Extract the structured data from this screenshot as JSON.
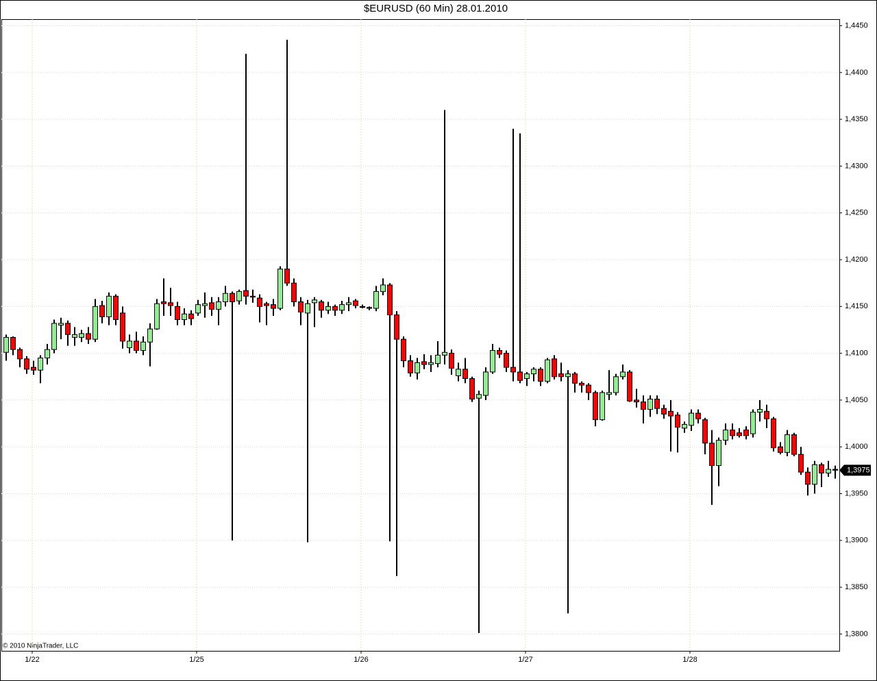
{
  "chart_data": {
    "type": "candlestick",
    "title": "$EURUSD (60 Min)  28.01.2010",
    "copyright": "© 2010 NinjaTrader, LLC",
    "up_color": "#90ee90",
    "down_color": "#ff0000",
    "grid": true,
    "open": [
      1.4101,
      1.4117,
      1.4104,
      1.4094,
      1.4085,
      1.4082,
      1.4095,
      1.4104,
      1.413,
      1.4132,
      1.4117,
      1.4117,
      1.4121,
      1.4115,
      1.4151,
      1.4139,
      1.4161,
      1.4143,
      1.4106,
      1.4113,
      1.4103,
      1.4112,
      1.4126,
      1.4155,
      1.4154,
      1.415,
      1.4136,
      1.4142,
      1.4143,
      1.4151,
      1.4154,
      1.4147,
      1.4155,
      1.4164,
      1.4156,
      1.4167,
      1.4161,
      1.4159,
      1.4153,
      1.4152,
      1.4148,
      1.419,
      1.4175,
      1.4155,
      1.4143,
      1.4154,
      1.4155,
      1.4146,
      1.415,
      1.4146,
      1.4152,
      1.4156,
      1.415,
      1.4149,
      1.4148,
      1.4166,
      1.4173,
      1.4141,
      1.4115,
      1.4092,
      1.4079,
      1.4091,
      1.4088,
      1.4089,
      1.4098,
      1.41,
      1.4076,
      1.4083,
      1.4073,
      1.4052,
      1.4055,
      1.408,
      1.4103,
      1.41,
      1.4085,
      1.408,
      1.4073,
      1.4078,
      1.4083,
      1.407,
      1.4094,
      1.4078,
      1.4075,
      1.4078,
      1.4068,
      1.4066,
      1.4058,
      1.4029,
      1.4056,
      1.4058,
      1.4075,
      1.408,
      1.405,
      1.4048,
      1.404,
      1.4051,
      1.4041,
      1.4038,
      1.4034,
      1.402,
      1.4023,
      1.4036,
      1.4029,
      1.4004,
      1.398,
      1.4007,
      1.4018,
      1.4015,
      1.4018,
      1.4014,
      1.4037,
      1.4038,
      1.403,
      1.4,
      1.3994,
      1.4013,
      1.3992,
      1.3973,
      1.396,
      1.3981,
      1.3972,
      1.3976
    ],
    "high": [
      1.412,
      1.4118,
      1.4106,
      1.4097,
      1.4092,
      1.4098,
      1.411,
      1.4136,
      1.4138,
      1.4135,
      1.4128,
      1.4125,
      1.4128,
      1.4158,
      1.4156,
      1.4165,
      1.4163,
      1.415,
      1.412,
      1.4123,
      1.4118,
      1.4132,
      1.4158,
      1.418,
      1.417,
      1.4155,
      1.4148,
      1.4146,
      1.4157,
      1.4165,
      1.416,
      1.416,
      1.4172,
      1.4166,
      1.4168,
      1.442,
      1.4168,
      1.4163,
      1.4155,
      1.4158,
      1.4193,
      1.4435,
      1.418,
      1.416,
      1.4157,
      1.416,
      1.4157,
      1.4155,
      1.4152,
      1.4156,
      1.416,
      1.4158,
      1.4152,
      1.415,
      1.4172,
      1.418,
      1.4175,
      1.4145,
      1.4118,
      1.4098,
      1.4095,
      1.4099,
      1.4098,
      1.4113,
      1.436,
      1.4104,
      1.409,
      1.4095,
      1.4075,
      1.406,
      1.4085,
      1.411,
      1.4106,
      1.4103,
      1.434,
      1.4335,
      1.408,
      1.4085,
      1.4085,
      1.4095,
      1.4098,
      1.409,
      1.4082,
      1.408,
      1.407,
      1.4068,
      1.406,
      1.406,
      1.4082,
      1.4078,
      1.4088,
      1.4082,
      1.4062,
      1.4055,
      1.4055,
      1.4055,
      1.4045,
      1.405,
      1.4037,
      1.4027,
      1.404,
      1.404,
      1.4031,
      1.4018,
      1.401,
      1.4025,
      1.4025,
      1.402,
      1.4022,
      1.404,
      1.405,
      1.4045,
      1.4032,
      1.4005,
      1.4018,
      1.4015,
      1.4,
      1.3978,
      1.3985,
      1.3983,
      1.3985,
      1.398
    ],
    "low": [
      1.4092,
      1.4098,
      1.4085,
      1.4078,
      1.4077,
      1.4068,
      1.4088,
      1.41,
      1.4115,
      1.4108,
      1.4108,
      1.4112,
      1.411,
      1.4112,
      1.4132,
      1.413,
      1.413,
      1.4105,
      1.41,
      1.41,
      1.4098,
      1.4086,
      1.4125,
      1.414,
      1.414,
      1.413,
      1.413,
      1.413,
      1.414,
      1.4138,
      1.414,
      1.413,
      1.415,
      1.39,
      1.4152,
      1.4152,
      1.4154,
      1.4133,
      1.413,
      1.414,
      1.4146,
      1.4172,
      1.415,
      1.413,
      1.3898,
      1.4128,
      1.4138,
      1.4142,
      1.414,
      1.4142,
      1.4145,
      1.4148,
      1.4148,
      1.4146,
      1.4145,
      1.4162,
      1.3899,
      1.3862,
      1.4085,
      1.4075,
      1.4072,
      1.4083,
      1.408,
      1.4085,
      1.4088,
      1.4077,
      1.407,
      1.4068,
      1.4048,
      1.3801,
      1.405,
      1.4078,
      1.4095,
      1.408,
      1.407,
      1.4068,
      1.4065,
      1.407,
      1.4065,
      1.4068,
      1.4072,
      1.407,
      1.3822,
      1.4058,
      1.4058,
      1.405,
      1.4022,
      1.4028,
      1.405,
      1.4055,
      1.4072,
      1.4048,
      1.4042,
      1.4025,
      1.4032,
      1.4035,
      1.403,
      1.3995,
      1.3994,
      1.4015,
      1.4017,
      1.4025,
      1.3992,
      1.3938,
      1.3958,
      1.4002,
      1.4008,
      1.401,
      1.4008,
      1.401,
      1.4027,
      1.402,
      1.3995,
      1.3992,
      1.399,
      1.399,
      1.397,
      1.3948,
      1.395,
      1.3957,
      1.3968,
      1.3966
    ],
    "close": [
      1.4117,
      1.4104,
      1.4094,
      1.4083,
      1.4082,
      1.4095,
      1.4104,
      1.4132,
      1.4132,
      1.412,
      1.412,
      1.4121,
      1.4115,
      1.415,
      1.4139,
      1.4161,
      1.4136,
      1.4113,
      1.4113,
      1.4103,
      1.4112,
      1.4126,
      1.4153,
      1.4153,
      1.4151,
      1.4136,
      1.4142,
      1.4137,
      1.4152,
      1.4153,
      1.4147,
      1.4155,
      1.4164,
      1.4155,
      1.4166,
      1.4161,
      1.416,
      1.415,
      1.4151,
      1.4148,
      1.419,
      1.4175,
      1.4155,
      1.4144,
      1.4153,
      1.4157,
      1.4146,
      1.415,
      1.4146,
      1.4152,
      1.4154,
      1.4151,
      1.4149,
      1.4148,
      1.4166,
      1.4173,
      1.4141,
      1.4115,
      1.4092,
      1.4079,
      1.409,
      1.4088,
      1.409,
      1.4098,
      1.4101,
      1.4084,
      1.4083,
      1.4073,
      1.4051,
      1.4056,
      1.408,
      1.4103,
      1.4099,
      1.4085,
      1.408,
      1.4071,
      1.4078,
      1.4083,
      1.407,
      1.4093,
      1.4075,
      1.4075,
      1.4078,
      1.4068,
      1.4066,
      1.4058,
      1.4029,
      1.4058,
      1.4058,
      1.4075,
      1.408,
      1.4049,
      1.4048,
      1.404,
      1.4051,
      1.4041,
      1.4035,
      1.4033,
      1.4021,
      1.4024,
      1.4036,
      1.403,
      1.4004,
      1.398,
      1.4007,
      1.4018,
      1.4012,
      1.4012,
      1.4012,
      1.4037,
      1.404,
      1.403,
      1.3999,
      1.3994,
      1.4013,
      1.3992,
      1.3973,
      1.396,
      1.3981,
      1.3972,
      1.3976,
      1.3975
    ],
    "xlim": [
      -0.7,
      121.6
    ],
    "xticks": [
      {
        "value": 3.8,
        "label": "1/22"
      },
      {
        "value": 27.8,
        "label": "1/25"
      },
      {
        "value": 51.8,
        "label": "1/26"
      },
      {
        "value": 75.8,
        "label": "1/27"
      },
      {
        "value": 99.8,
        "label": "1/28"
      }
    ],
    "ylim": [
      1.3782,
      1.4457
    ],
    "yticks": [
      {
        "value": 1.445,
        "label": "1,4450"
      },
      {
        "value": 1.44,
        "label": "1,4400"
      },
      {
        "value": 1.435,
        "label": "1,4350"
      },
      {
        "value": 1.43,
        "label": "1,4300"
      },
      {
        "value": 1.425,
        "label": "1,4250"
      },
      {
        "value": 1.42,
        "label": "1,4200"
      },
      {
        "value": 1.415,
        "label": "1,4150"
      },
      {
        "value": 1.41,
        "label": "1,4100"
      },
      {
        "value": 1.405,
        "label": "1,4050"
      },
      {
        "value": 1.4,
        "label": "1,4000"
      },
      {
        "value": 1.395,
        "label": "1,3950"
      },
      {
        "value": 1.39,
        "label": "1,3900"
      },
      {
        "value": 1.385,
        "label": "1,3850"
      },
      {
        "value": 1.38,
        "label": "1,3800"
      }
    ],
    "last_price": {
      "value": 1.3975,
      "label": "1,3975"
    }
  }
}
